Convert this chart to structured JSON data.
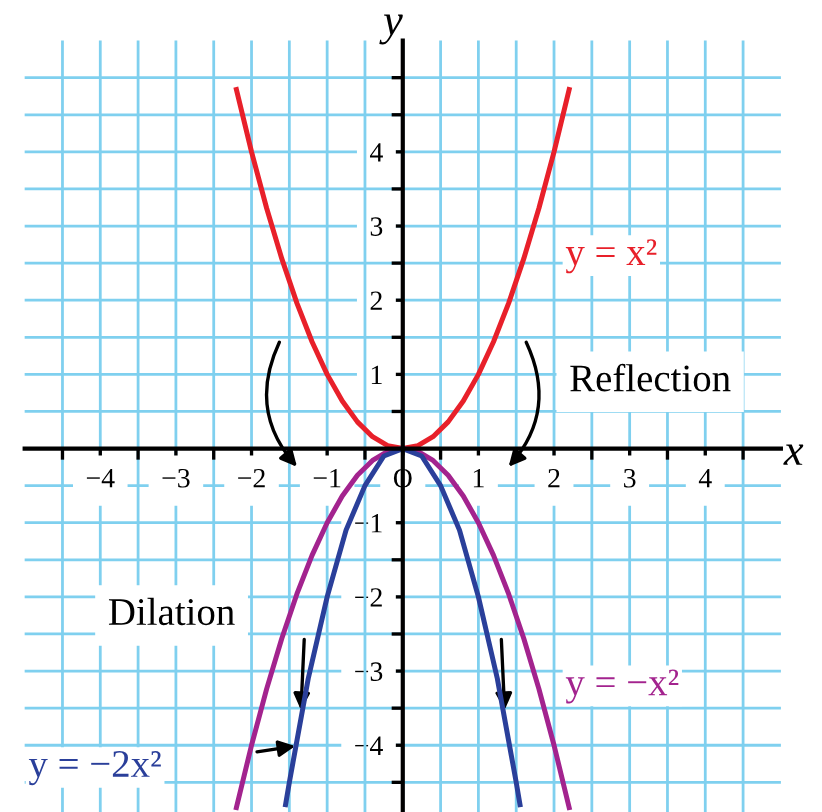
{
  "chart_data": {
    "type": "line",
    "xlabel": "x",
    "ylabel": "y",
    "xlim": [
      -5,
      5
    ],
    "ylim": [
      -4.9,
      5.5
    ],
    "xticks": [
      {
        "value": -4.5,
        "label": null
      },
      -4,
      {
        "value": -3.5,
        "label": null
      },
      -3,
      {
        "value": -2.5,
        "label": null
      },
      -2,
      {
        "value": -1.5,
        "label": null
      },
      -1,
      {
        "value": -0.5,
        "label": null
      },
      {
        "value": 0,
        "label": "O"
      },
      {
        "value": 0.5,
        "label": null
      },
      1,
      {
        "value": 1.5,
        "label": null
      },
      2,
      {
        "value": 2.5,
        "label": null
      },
      3,
      {
        "value": 3.5,
        "label": null
      },
      4,
      {
        "value": 4.5,
        "label": null
      }
    ],
    "yticks": [
      {
        "value": -4.5,
        "label": null
      },
      -4,
      {
        "value": -3.5,
        "label": null
      },
      -3,
      {
        "value": -2.5,
        "label": null
      },
      -2,
      {
        "value": -1.5,
        "label": null
      },
      -1,
      {
        "value": -0.5,
        "label": null
      },
      {
        "value": 0.5,
        "label": null
      },
      1,
      {
        "value": 1.5,
        "label": null
      },
      2,
      {
        "value": 2.5,
        "label": null
      },
      3,
      {
        "value": 3.5,
        "label": null
      },
      4,
      {
        "value": 4.5,
        "label": null
      },
      {
        "value": 5,
        "label": null
      }
    ],
    "grid": true,
    "legend": false,
    "marker": "none",
    "line_style": "solid",
    "series": [
      {
        "name": "y = x²",
        "color": "#e8202a",
        "x": [
          -2.2,
          -2,
          -1.8,
          -1.6,
          -1.4,
          -1.2,
          -1,
          -0.8,
          -0.6,
          -0.4,
          -0.2,
          0,
          0.2,
          0.4,
          0.6,
          0.8,
          1,
          1.2,
          1.4,
          1.6,
          1.8,
          2,
          2.2
        ],
        "values": [
          4.84,
          4,
          3.24,
          2.56,
          1.96,
          1.44,
          1,
          0.64,
          0.36,
          0.16,
          0.04,
          0,
          0.04,
          0.16,
          0.36,
          0.64,
          1,
          1.44,
          1.96,
          2.56,
          3.24,
          4,
          4.84
        ]
      },
      {
        "name": "y = −x²",
        "color": "#a3238e",
        "x": [
          -2.2,
          -2,
          -1.8,
          -1.6,
          -1.4,
          -1.2,
          -1,
          -0.8,
          -0.6,
          -0.4,
          -0.2,
          0,
          0.2,
          0.4,
          0.6,
          0.8,
          1,
          1.2,
          1.4,
          1.6,
          1.8,
          2,
          2.2
        ],
        "values": [
          -4.84,
          -4,
          -3.24,
          -2.56,
          -1.96,
          -1.44,
          -1,
          -0.64,
          -0.36,
          -0.16,
          -0.04,
          0,
          -0.04,
          -0.16,
          -0.36,
          -0.64,
          -1,
          -1.44,
          -1.96,
          -2.56,
          -3.24,
          -4,
          -4.84
        ]
      },
      {
        "name": "y = −2x²",
        "color": "#2a3f9a",
        "x": [
          -1.55,
          -1.5,
          -1.25,
          -1,
          -0.75,
          -0.5,
          -0.25,
          0,
          0.25,
          0.5,
          0.75,
          1,
          1.25,
          1.5,
          1.55
        ],
        "values": [
          -4.8,
          -4.5,
          -3.1,
          -2,
          -1.1,
          -0.5,
          -0.1,
          0,
          -0.1,
          -0.5,
          -1.1,
          -2,
          -3.1,
          -4.5,
          -4.8
        ]
      }
    ],
    "annotations": [
      "Reflection",
      "Dilation"
    ]
  }
}
